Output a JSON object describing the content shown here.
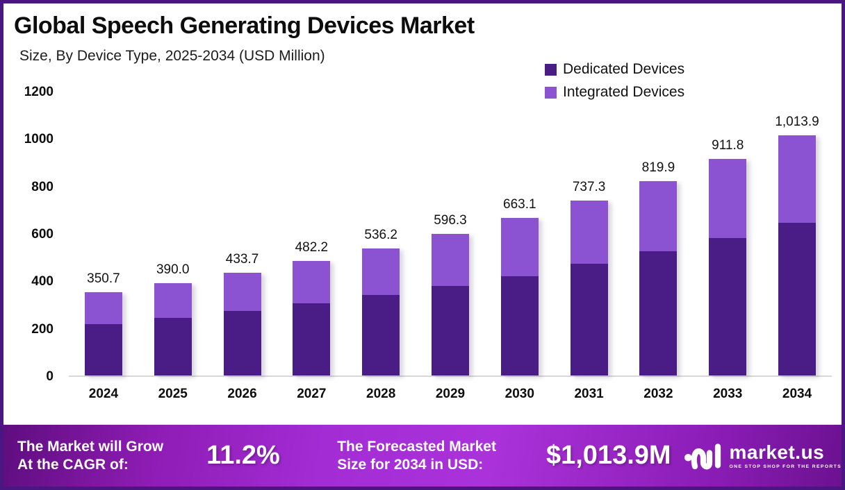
{
  "header": {
    "title": "Global Speech Generating Devices Market",
    "subtitle": "Size, By Device Type, 2025-2034 (USD Million)"
  },
  "colors": {
    "dedicated": "#4a1d86",
    "integrated": "#8b53d2",
    "page_border": "#4a1782",
    "banner_center": "#a32cd4",
    "banner_edge": "#5e0d7e",
    "axis_line": "#d8d8d8",
    "text": "#0d0d0d"
  },
  "chart_data": {
    "type": "bar",
    "stacked": true,
    "title": "Global Speech Generating Devices Market",
    "subtitle": "Size, By Device Type, 2025-2034 (USD Million)",
    "xlabel": "",
    "ylabel": "USD Million",
    "ylim": [
      0,
      1200
    ],
    "yticks": [
      0,
      200,
      400,
      600,
      800,
      1000,
      1200
    ],
    "grid": false,
    "legend_position": "top-right",
    "categories": [
      "2024",
      "2025",
      "2026",
      "2027",
      "2028",
      "2029",
      "2030",
      "2031",
      "2032",
      "2033",
      "2034"
    ],
    "series": [
      {
        "name": "Dedicated Devices",
        "color": "#4a1d86",
        "values_estimated_from_pixels": true,
        "values": [
          216,
          242,
          272,
          304,
          340,
          378,
          418,
          470,
          523,
          580,
          644
        ]
      },
      {
        "name": "Integrated Devices",
        "color": "#8b53d2",
        "values_estimated_from_pixels": true,
        "values": [
          134.7,
          148.0,
          161.7,
          178.2,
          196.2,
          218.3,
          245.1,
          267.3,
          296.9,
          331.8,
          369.9
        ]
      }
    ],
    "totals": [
      350.7,
      390.0,
      433.7,
      482.2,
      536.2,
      596.3,
      663.1,
      737.3,
      819.9,
      911.8,
      1013.9
    ],
    "total_labels": [
      "350.7",
      "390.0",
      "433.7",
      "482.2",
      "536.2",
      "596.3",
      "663.1",
      "737.3",
      "819.9",
      "911.8",
      "1,013.9"
    ]
  },
  "banner": {
    "cagr_label_line1": "The Market will Grow",
    "cagr_label_line2": "At the CAGR of:",
    "cagr_value": "11.2%",
    "forecast_label_line1": "The Forecasted Market",
    "forecast_label_line2": "Size for 2034 in USD:",
    "forecast_value": "$1,013.9M",
    "logo_text": "market.us",
    "logo_tagline": "ONE STOP SHOP FOR THE REPORTS"
  }
}
